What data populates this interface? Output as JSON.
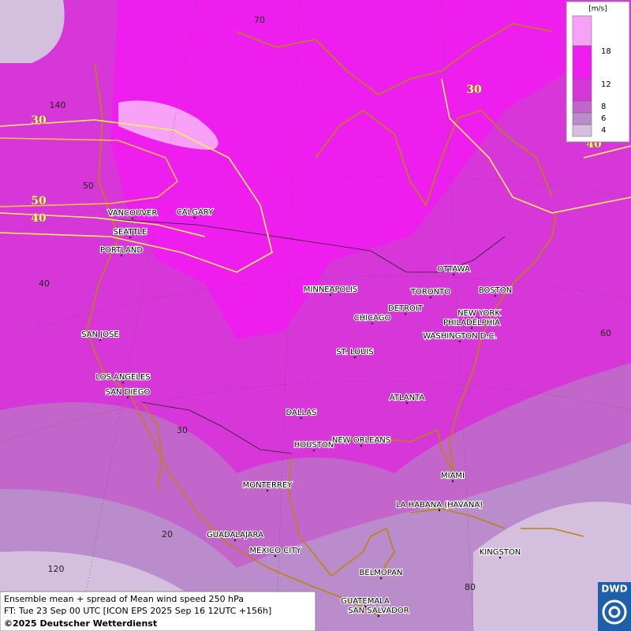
{
  "map": {
    "legend": {
      "unit": "[m/s]",
      "ticks": [
        18,
        12,
        8,
        6,
        4
      ],
      "colors": [
        "#f7a2f7",
        "#ee1eee",
        "#d737d9",
        "#c266cc",
        "#bb8ccc",
        "#d5bfdf"
      ]
    },
    "cities": [
      "VANCOUVER",
      "CALGARY",
      "SEATTLE",
      "PORTLAND",
      "MINNEAPOLIS",
      "OTTAWA",
      "TORONTO",
      "BOSTON",
      "DETROIT",
      "CHICAGO",
      "NEW YORK",
      "PHILADELPHIA",
      "WASHINGTON D.C.",
      "SAN JOSE",
      "ST. LOUIS",
      "LOS ANGELES",
      "SAN DIEGO",
      "ATLANTA",
      "DALLAS",
      "HOUSTON",
      "NEW ORLEANS",
      "MIAMI",
      "MONTERREY",
      "LA HABANA (HAVANA)",
      "GUADALAJARA",
      "MEXICO CITY",
      "KINGSTON",
      "BELMOPAN",
      "GUATEMALA",
      "SAN SALVADOR"
    ],
    "grid_labels": [
      "70",
      "140",
      "50",
      "40",
      "30",
      "20",
      "120",
      "60",
      "80"
    ],
    "contour_labels": [
      "30",
      "50",
      "40",
      "30",
      "40"
    ],
    "footer": {
      "line1": "Ensemble mean + spread of Mean wind speed 250 hPa",
      "line2": "FT: Tue 23 Sep 00 UTC [ICON EPS 2025 Sep 16 12UTC +156h]",
      "line3": "©2025 Deutscher Wetterdienst"
    },
    "logo": "DWD"
  }
}
